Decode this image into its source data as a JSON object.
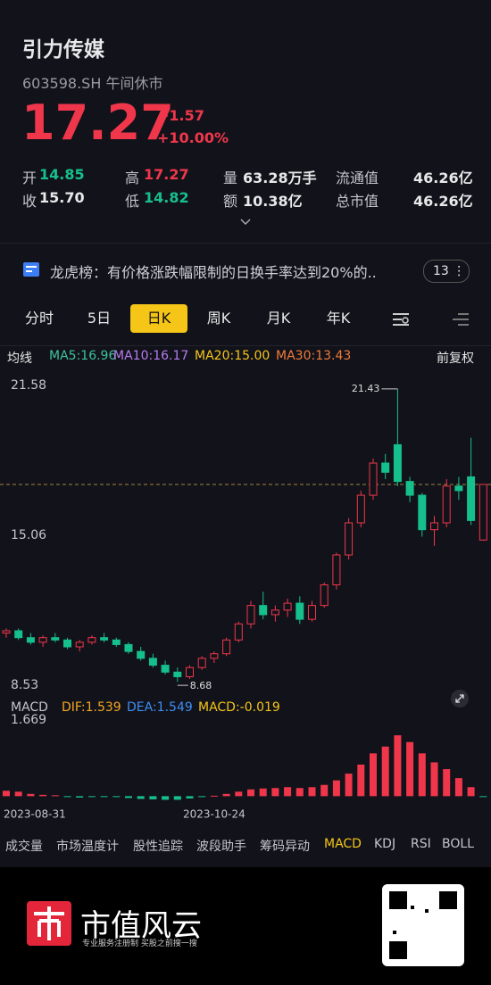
{
  "header": {
    "title": "引力传媒",
    "code": "603598.SH",
    "status": "午间休市"
  },
  "quote": {
    "price": "17.27",
    "change": "+1.57",
    "change_pct": "+10.00%"
  },
  "stats": [
    {
      "label": "开",
      "value": "14.85"
    },
    {
      "label": "高",
      "value": "17.27"
    },
    {
      "label": "量",
      "value": "63.28万手"
    },
    {
      "label": "流通值",
      "value": "46.26亿"
    },
    {
      "label": "收",
      "value": "15.70"
    },
    {
      "label": "低",
      "value": "14.82"
    },
    {
      "label": "额",
      "value": "10.38亿"
    },
    {
      "label": "总市值",
      "value": "46.26亿"
    }
  ],
  "notice": {
    "text": "龙虎榜：有价格涨跌幅限制的日换手率达到20%的..",
    "count": "13"
  },
  "tabs": [
    "分时",
    "5日",
    "日K",
    "周K",
    "月K",
    "年K"
  ],
  "ma_legend": {
    "label": "均线",
    "items": [
      "MA5:16.96",
      "MA10:16.17",
      "MA20:15.00",
      "MA30:13.43"
    ],
    "adjust": "前复权"
  },
  "chart_data": [
    {
      "type": "candlestick",
      "ylim": [
        8.53,
        21.58
      ],
      "yticks": [
        21.58,
        15.06,
        8.53
      ],
      "last_price": 17.27,
      "categories": [
        "2023-08-31",
        null,
        null,
        null,
        null,
        null,
        null,
        null,
        null,
        null,
        null,
        null,
        null,
        null,
        null,
        null,
        null,
        "2023-10-24",
        null,
        null,
        null,
        null,
        null,
        null,
        null,
        null,
        null,
        null,
        null,
        null,
        null,
        null,
        null,
        null,
        null,
        null,
        null,
        null,
        null,
        null
      ],
      "open": [
        10.8,
        10.9,
        10.6,
        10.4,
        10.6,
        10.5,
        10.2,
        10.4,
        10.6,
        10.5,
        10.3,
        10.0,
        9.7,
        9.4,
        9.1,
        8.9,
        9.3,
        9.7,
        9.9,
        10.5,
        11.2,
        12.0,
        11.6,
        11.8,
        12.1,
        11.4,
        12.0,
        12.9,
        14.2,
        15.6,
        16.8,
        18.2,
        19.0,
        17.4,
        16.8,
        15.3,
        15.6,
        17.2,
        17.6,
        14.85
      ],
      "high": [
        11.0,
        11.0,
        10.8,
        10.7,
        10.8,
        10.6,
        10.5,
        10.7,
        10.8,
        10.6,
        10.4,
        10.2,
        9.9,
        9.6,
        9.3,
        9.4,
        9.8,
        10.0,
        10.6,
        11.3,
        12.2,
        12.6,
        12.0,
        12.3,
        12.4,
        12.2,
        13.0,
        14.3,
        15.8,
        17.0,
        18.4,
        18.6,
        21.43,
        17.6,
        16.9,
        15.9,
        17.5,
        17.6,
        19.3,
        17.27
      ],
      "low": [
        10.6,
        10.5,
        10.3,
        10.2,
        10.4,
        10.1,
        10.0,
        10.3,
        10.4,
        10.2,
        9.9,
        9.6,
        9.3,
        9.0,
        8.68,
        8.8,
        9.2,
        9.5,
        9.8,
        10.4,
        11.0,
        11.4,
        11.3,
        11.5,
        11.2,
        11.3,
        11.9,
        12.7,
        14.0,
        15.4,
        16.6,
        17.5,
        17.2,
        16.5,
        15.0,
        14.6,
        15.4,
        16.6,
        15.5,
        14.82
      ],
      "close": [
        10.9,
        10.6,
        10.4,
        10.6,
        10.5,
        10.2,
        10.4,
        10.6,
        10.5,
        10.3,
        10.0,
        9.7,
        9.4,
        9.1,
        8.9,
        9.3,
        9.7,
        9.9,
        10.5,
        11.2,
        12.0,
        11.6,
        11.8,
        12.1,
        11.4,
        12.0,
        12.9,
        14.2,
        15.6,
        16.8,
        18.2,
        17.8,
        17.4,
        16.8,
        15.3,
        15.6,
        17.2,
        17.0,
        15.7,
        17.27
      ]
    },
    {
      "type": "bar",
      "title": "MACD",
      "legend": [
        "DIF:1.539",
        "DEA:1.549",
        "MACD:-0.019"
      ],
      "ylim": [
        -0.25,
        1.669
      ],
      "yticks": [
        1.669
      ],
      "values": [
        0.12,
        0.1,
        0.05,
        0.03,
        0.02,
        -0.02,
        -0.03,
        -0.02,
        -0.01,
        -0.02,
        -0.04,
        -0.06,
        -0.07,
        -0.08,
        -0.08,
        -0.05,
        -0.02,
        0.01,
        0.05,
        0.1,
        0.15,
        0.17,
        0.18,
        0.2,
        0.18,
        0.2,
        0.25,
        0.35,
        0.5,
        0.7,
        0.95,
        1.1,
        1.35,
        1.2,
        0.95,
        0.75,
        0.6,
        0.4,
        0.2,
        -0.019
      ]
    }
  ],
  "indicators": [
    "成交量",
    "市场温度计",
    "股性追踪",
    "波段助手",
    "筹码异动",
    "MACD",
    "KDJ",
    "RSI",
    "BOLL"
  ],
  "footer": {
    "brand": "市值风云",
    "slogan": "专业服务注册制 买股之前搜一搜"
  }
}
